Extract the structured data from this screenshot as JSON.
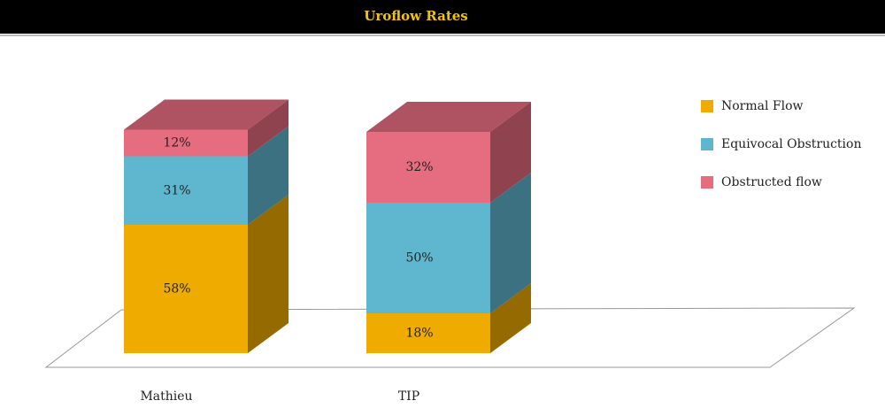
{
  "chart_data": {
    "type": "bar3d-stacked",
    "title": "Uroflow Rates",
    "categories": [
      "Mathieu",
      "TIP"
    ],
    "series": [
      {
        "name": "Normal Flow",
        "color": "#f0ab00",
        "values": [
          58,
          18
        ],
        "value_labels": [
          "58%",
          "18%"
        ]
      },
      {
        "name": "Equivocal Obstruction",
        "color": "#5fb6cf",
        "values": [
          31,
          50
        ],
        "value_labels": [
          "31%",
          "50%"
        ]
      },
      {
        "name": "Obstructed flow",
        "color": "#e66c80",
        "values": [
          12,
          32
        ],
        "value_labels": [
          "12%",
          "32%"
        ]
      }
    ],
    "legend": "right"
  }
}
